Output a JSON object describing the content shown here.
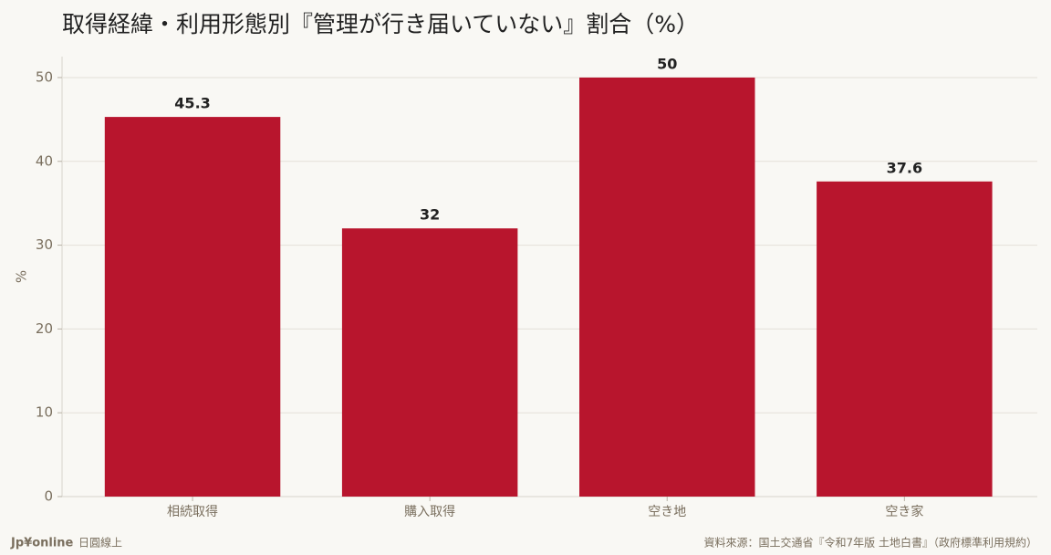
{
  "chart_data": {
    "type": "bar",
    "title": "取得経緯・利用形態別『管理が行き届いていない』割合（%）",
    "y_label": "%",
    "categories": [
      "相続取得",
      "購入取得",
      "空き地",
      "空き家"
    ],
    "values": [
      45.3,
      32,
      50,
      37.6
    ],
    "color": "#b8152d",
    "ylim": [
      0,
      52.5
    ],
    "yticks": [
      0,
      10,
      20,
      30,
      40,
      50
    ],
    "grid": true
  },
  "footer": {
    "brand": "Jp¥online",
    "brand_sub": "日圓線上",
    "source": "資料來源：国土交通省『令和7年版 土地白書』（政府標準利用規約）"
  }
}
